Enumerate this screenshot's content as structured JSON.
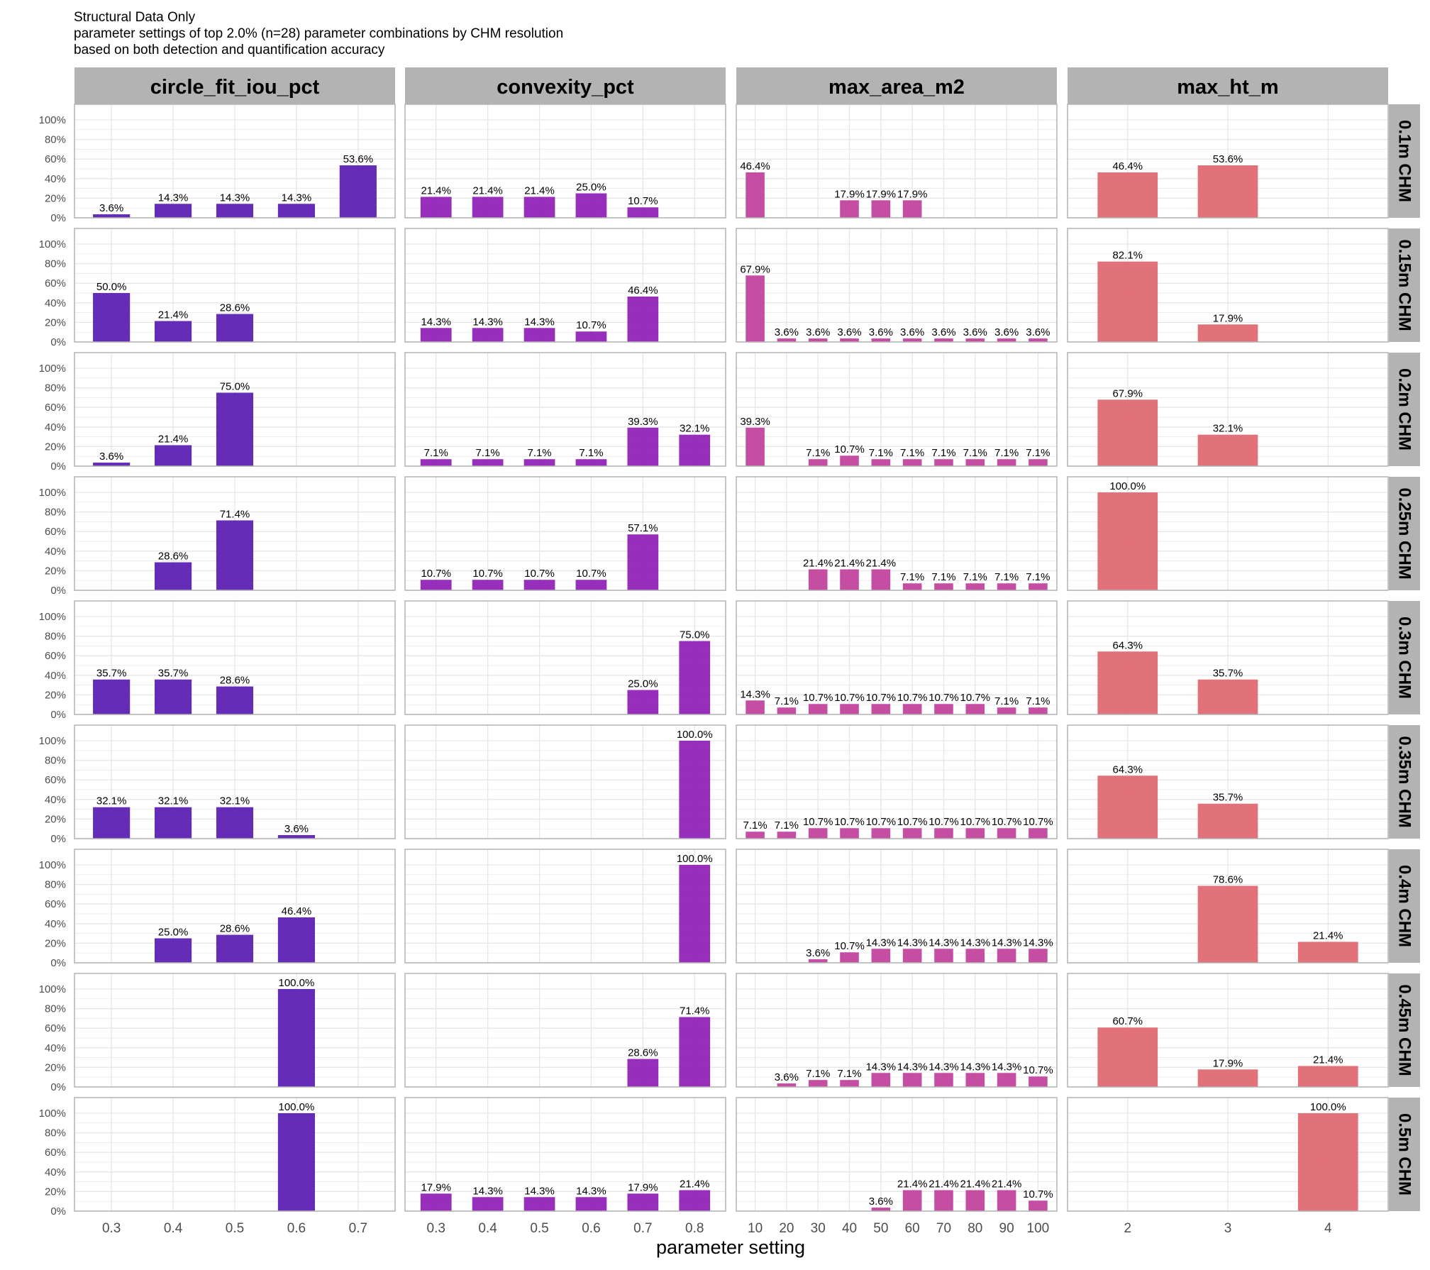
{
  "title_lines": [
    "Structural Data Only",
    "parameter settings of top 2.0% (n=28) parameter combinations by CHM resolution",
    "based on both detection and quantification accuracy"
  ],
  "colors": {
    "circle_fit_iou_pct": "#5c21b3",
    "convexity_pct": "#9124b8",
    "max_area_m2": "#c2449d",
    "max_ht_m": "#e06a72",
    "strip_fill": "#b3b3b3",
    "grid": "#e6e6e6",
    "panel_border": "#b3b3b3"
  },
  "chart_data": {
    "type": "bar",
    "title": "Structural Data Only",
    "subtitle": "parameter settings of top 2.0% (n=28) parameter combinations by CHM resolution based on both detection and quantification accuracy",
    "xlabel": "parameter setting",
    "ylabel": "",
    "ylim": [
      0,
      100
    ],
    "y_ticks": [
      "0%",
      "20%",
      "40%",
      "60%",
      "80%",
      "100%"
    ],
    "y_tick_values": [
      0,
      20,
      40,
      60,
      80,
      100
    ],
    "grid": true,
    "legend": "none",
    "facet_columns": [
      {
        "name": "circle_fit_iou_pct",
        "categories": [
          "0.3",
          "0.4",
          "0.5",
          "0.6",
          "0.7"
        ]
      },
      {
        "name": "convexity_pct",
        "categories": [
          "0.3",
          "0.4",
          "0.5",
          "0.6",
          "0.7",
          "0.8"
        ]
      },
      {
        "name": "max_area_m2",
        "categories": [
          "10",
          "20",
          "30",
          "40",
          "50",
          "60",
          "70",
          "80",
          "90",
          "100"
        ]
      },
      {
        "name": "max_ht_m",
        "categories": [
          "2",
          "3",
          "4"
        ]
      }
    ],
    "facet_rows": [
      "0.1m CHM",
      "0.15m CHM",
      "0.2m CHM",
      "0.25m CHM",
      "0.3m CHM",
      "0.35m CHM",
      "0.4m CHM",
      "0.45m CHM",
      "0.5m CHM"
    ],
    "panels": [
      [
        [
          3.6,
          14.3,
          14.3,
          14.3,
          53.6
        ],
        [
          21.4,
          21.4,
          21.4,
          25.0,
          10.7,
          null
        ],
        [
          46.4,
          null,
          null,
          17.9,
          17.9,
          17.9,
          null,
          null,
          null,
          null
        ],
        [
          46.4,
          53.6,
          null
        ]
      ],
      [
        [
          50.0,
          21.4,
          28.6,
          null,
          null
        ],
        [
          14.3,
          14.3,
          14.3,
          10.7,
          46.4,
          null
        ],
        [
          67.9,
          3.6,
          3.6,
          3.6,
          3.6,
          3.6,
          3.6,
          3.6,
          3.6,
          3.6
        ],
        [
          82.1,
          17.9,
          null
        ]
      ],
      [
        [
          3.6,
          21.4,
          75.0,
          null,
          null
        ],
        [
          7.1,
          7.1,
          7.1,
          7.1,
          39.3,
          32.1
        ],
        [
          39.3,
          null,
          7.1,
          10.7,
          7.1,
          7.1,
          7.1,
          7.1,
          7.1,
          7.1
        ],
        [
          67.9,
          32.1,
          null
        ]
      ],
      [
        [
          null,
          28.6,
          71.4,
          null,
          null
        ],
        [
          10.7,
          10.7,
          10.7,
          10.7,
          57.1,
          null
        ],
        [
          null,
          null,
          21.4,
          21.4,
          21.4,
          7.1,
          7.1,
          7.1,
          7.1,
          7.1
        ],
        [
          100.0,
          null,
          null
        ]
      ],
      [
        [
          35.7,
          35.7,
          28.6,
          null,
          null
        ],
        [
          null,
          null,
          null,
          null,
          25.0,
          75.0
        ],
        [
          14.3,
          7.1,
          10.7,
          10.7,
          10.7,
          10.7,
          10.7,
          10.7,
          7.1,
          7.1
        ],
        [
          64.3,
          35.7,
          null
        ]
      ],
      [
        [
          32.1,
          32.1,
          32.1,
          3.6,
          null
        ],
        [
          null,
          null,
          null,
          null,
          null,
          100.0
        ],
        [
          7.1,
          7.1,
          10.7,
          10.7,
          10.7,
          10.7,
          10.7,
          10.7,
          10.7,
          10.7
        ],
        [
          64.3,
          35.7,
          null
        ]
      ],
      [
        [
          null,
          25.0,
          28.6,
          46.4,
          null
        ],
        [
          null,
          null,
          null,
          null,
          null,
          100.0
        ],
        [
          null,
          null,
          3.6,
          10.7,
          14.3,
          14.3,
          14.3,
          14.3,
          14.3,
          14.3
        ],
        [
          null,
          78.6,
          21.4
        ]
      ],
      [
        [
          null,
          null,
          null,
          100.0,
          null
        ],
        [
          null,
          null,
          null,
          null,
          28.6,
          71.4
        ],
        [
          null,
          3.6,
          7.1,
          7.1,
          14.3,
          14.3,
          14.3,
          14.3,
          14.3,
          10.7
        ],
        [
          60.7,
          17.9,
          21.4
        ]
      ],
      [
        [
          null,
          null,
          null,
          100.0,
          null
        ],
        [
          17.9,
          14.3,
          14.3,
          14.3,
          17.9,
          21.4
        ],
        [
          null,
          null,
          null,
          null,
          3.6,
          21.4,
          21.4,
          21.4,
          21.4,
          10.7
        ],
        [
          null,
          null,
          100.0
        ]
      ]
    ]
  }
}
